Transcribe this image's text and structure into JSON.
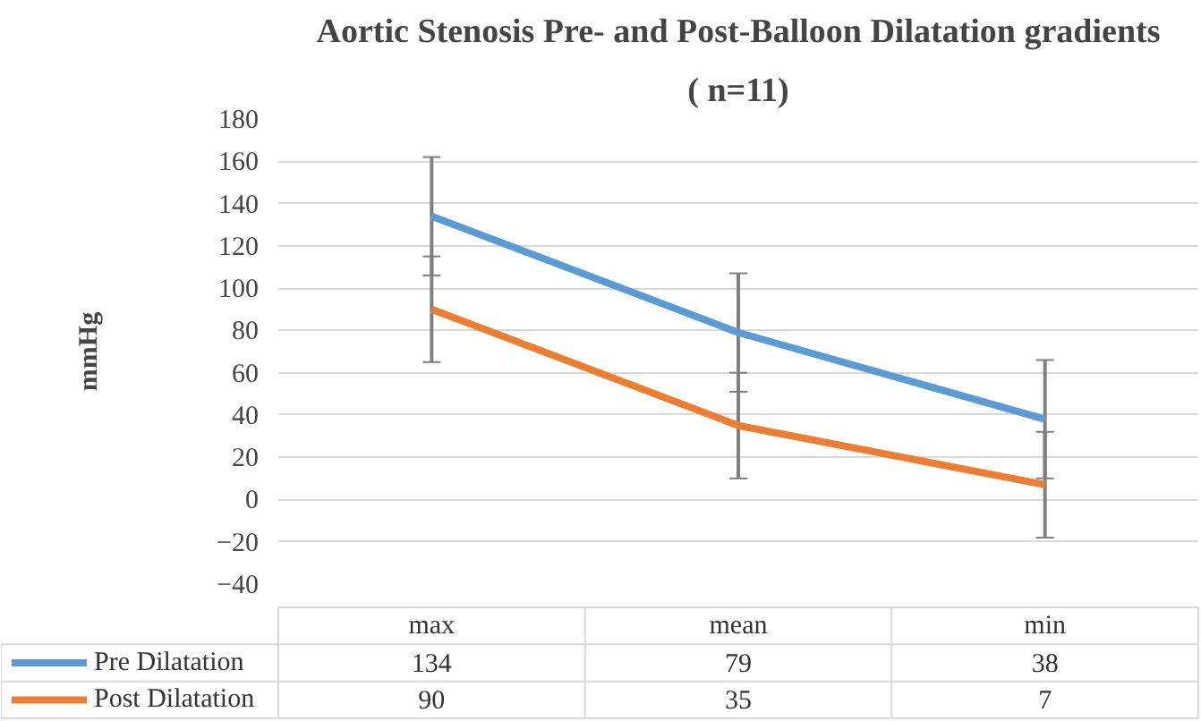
{
  "chart_data": {
    "type": "line",
    "title": "Aortic Stenosis Pre- and Post-Balloon Dilatation gradients",
    "subtitle": "( n=11)",
    "ylabel": "mmHg",
    "categories": [
      "max",
      "mean",
      "min"
    ],
    "series": [
      {
        "name": "Pre Dilatation",
        "color": "#5b9bd5",
        "values": [
          134,
          79,
          38
        ],
        "errors": [
          28,
          28,
          28
        ]
      },
      {
        "name": "Post Dilatation",
        "color": "#ed7d31",
        "values": [
          90,
          35,
          7
        ],
        "errors": [
          25,
          25,
          25
        ]
      }
    ],
    "ylim": [
      -40,
      180
    ],
    "yticks": [
      -40,
      -20,
      0,
      20,
      40,
      60,
      80,
      100,
      120,
      140,
      160,
      180
    ],
    "grid": "y",
    "legend": "bottom",
    "data_labels": true,
    "marker": "none",
    "line_style": "solid"
  }
}
